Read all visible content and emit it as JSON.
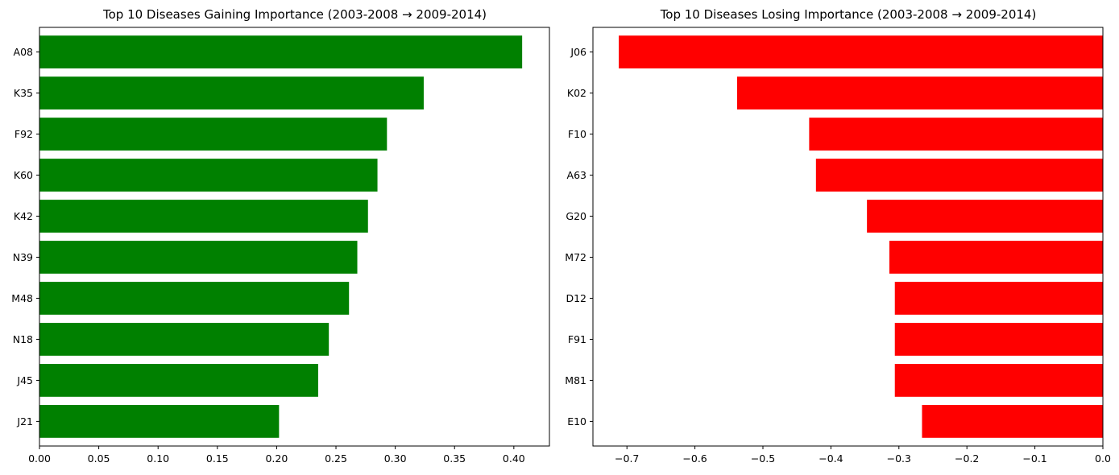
{
  "chart_data": [
    {
      "type": "bar",
      "orientation": "horizontal",
      "title": "Top 10 Diseases Gaining Importance (2003-2008 → 2009-2014)",
      "xlabel": "",
      "ylabel": "",
      "categories": [
        "A08",
        "K35",
        "F92",
        "K60",
        "K42",
        "N39",
        "M48",
        "N18",
        "J45",
        "J21"
      ],
      "values": [
        0.407,
        0.324,
        0.293,
        0.285,
        0.277,
        0.268,
        0.261,
        0.244,
        0.235,
        0.202
      ],
      "xlim": [
        0.0,
        0.43
      ],
      "xticks": [
        0.0,
        0.05,
        0.1,
        0.15,
        0.2,
        0.25,
        0.3,
        0.35,
        0.4
      ],
      "xtick_labels": [
        "0.00",
        "0.05",
        "0.10",
        "0.15",
        "0.20",
        "0.25",
        "0.30",
        "0.35",
        "0.40"
      ],
      "color": "#008000",
      "grid": false
    },
    {
      "type": "bar",
      "orientation": "horizontal",
      "title": "Top 10 Diseases Losing Importance (2003-2008 → 2009-2014)",
      "xlabel": "",
      "ylabel": "",
      "categories": [
        "J06",
        "K02",
        "F10",
        "A63",
        "G20",
        "M72",
        "D12",
        "F91",
        "M81",
        "E10"
      ],
      "values": [
        -0.712,
        -0.538,
        -0.432,
        -0.422,
        -0.347,
        -0.314,
        -0.306,
        -0.306,
        -0.306,
        -0.266
      ],
      "xlim": [
        -0.75,
        0.0
      ],
      "xticks": [
        -0.7,
        -0.6,
        -0.5,
        -0.4,
        -0.3,
        -0.2,
        -0.1,
        0.0
      ],
      "xtick_labels": [
        "−0.7",
        "−0.6",
        "−0.5",
        "−0.4",
        "−0.3",
        "−0.2",
        "−0.1",
        "0.0"
      ],
      "color": "#ff0000",
      "grid": false
    }
  ]
}
